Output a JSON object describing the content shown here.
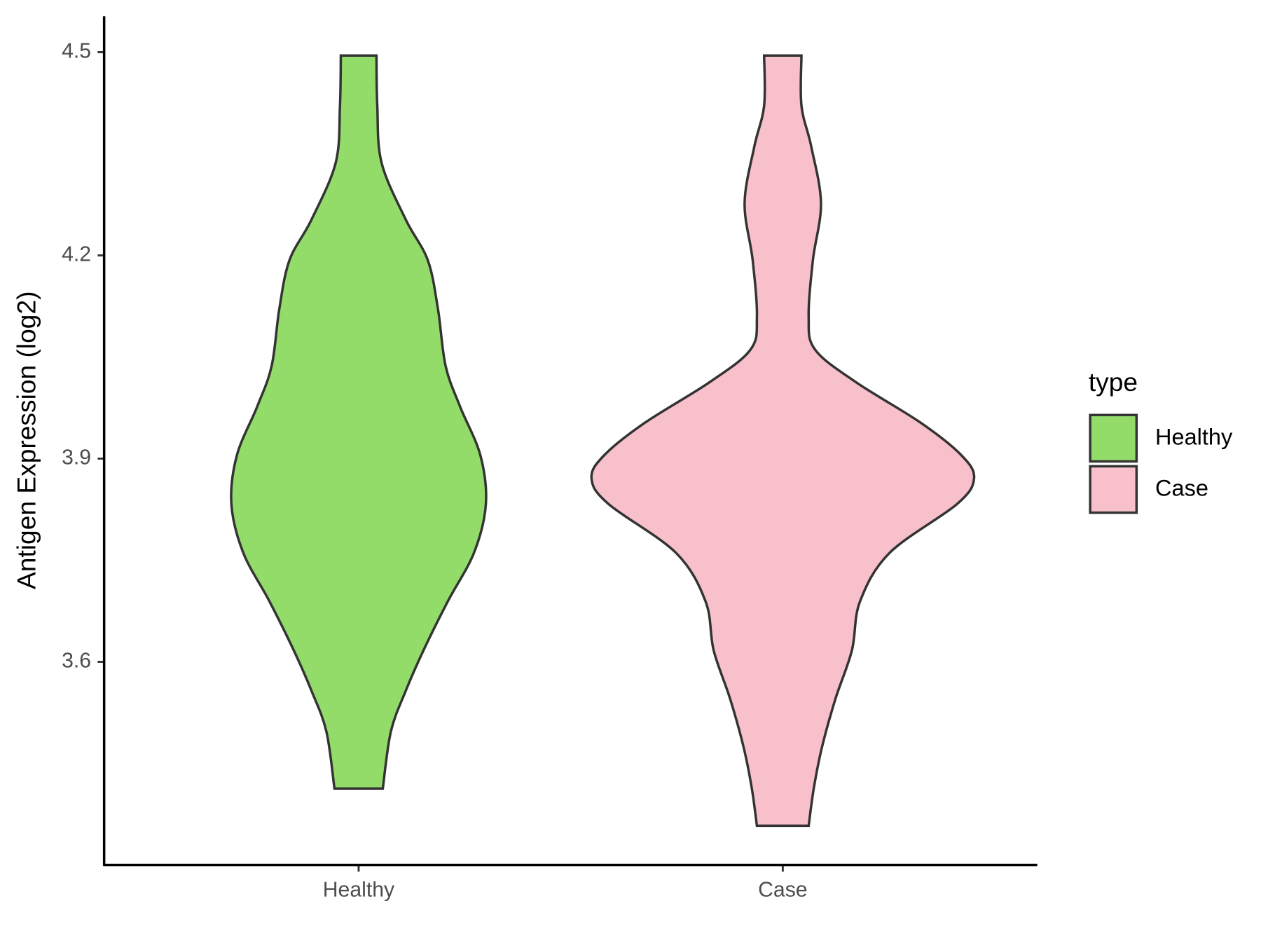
{
  "chart_data": {
    "type": "violin",
    "y_label": "Antigen Expression (log2)",
    "categories": [
      "Healthy",
      "Case"
    ],
    "series": [
      {
        "name": "Healthy",
        "color": "#93dc6a",
        "y": [
          4.495,
          4.421,
          4.337,
          4.253,
          4.193,
          4.121,
          4.037,
          3.977,
          3.905,
          3.833,
          3.761,
          3.689,
          3.617,
          3.557,
          3.497,
          3.413
        ],
        "half_width": [
          0.042,
          0.044,
          0.054,
          0.111,
          0.163,
          0.187,
          0.205,
          0.239,
          0.287,
          0.3,
          0.272,
          0.21,
          0.153,
          0.111,
          0.076,
          0.057
        ]
      },
      {
        "name": "Case",
        "color": "#f7c0cb",
        "y": [
          4.495,
          4.421,
          4.361,
          4.277,
          4.193,
          4.109,
          4.061,
          4.013,
          3.953,
          3.905,
          3.871,
          3.833,
          3.761,
          3.689,
          3.617,
          3.545,
          3.473,
          3.413,
          3.358
        ],
        "half_width": [
          0.044,
          0.044,
          0.067,
          0.09,
          0.071,
          0.061,
          0.076,
          0.172,
          0.325,
          0.421,
          0.451,
          0.411,
          0.252,
          0.182,
          0.163,
          0.124,
          0.092,
          0.073,
          0.061
        ]
      }
    ],
    "ylim": [
      3.3,
      4.553
    ],
    "yticks": [
      3.6,
      3.9,
      4.2,
      4.5
    ],
    "legend_title": "type",
    "legend": "right"
  }
}
